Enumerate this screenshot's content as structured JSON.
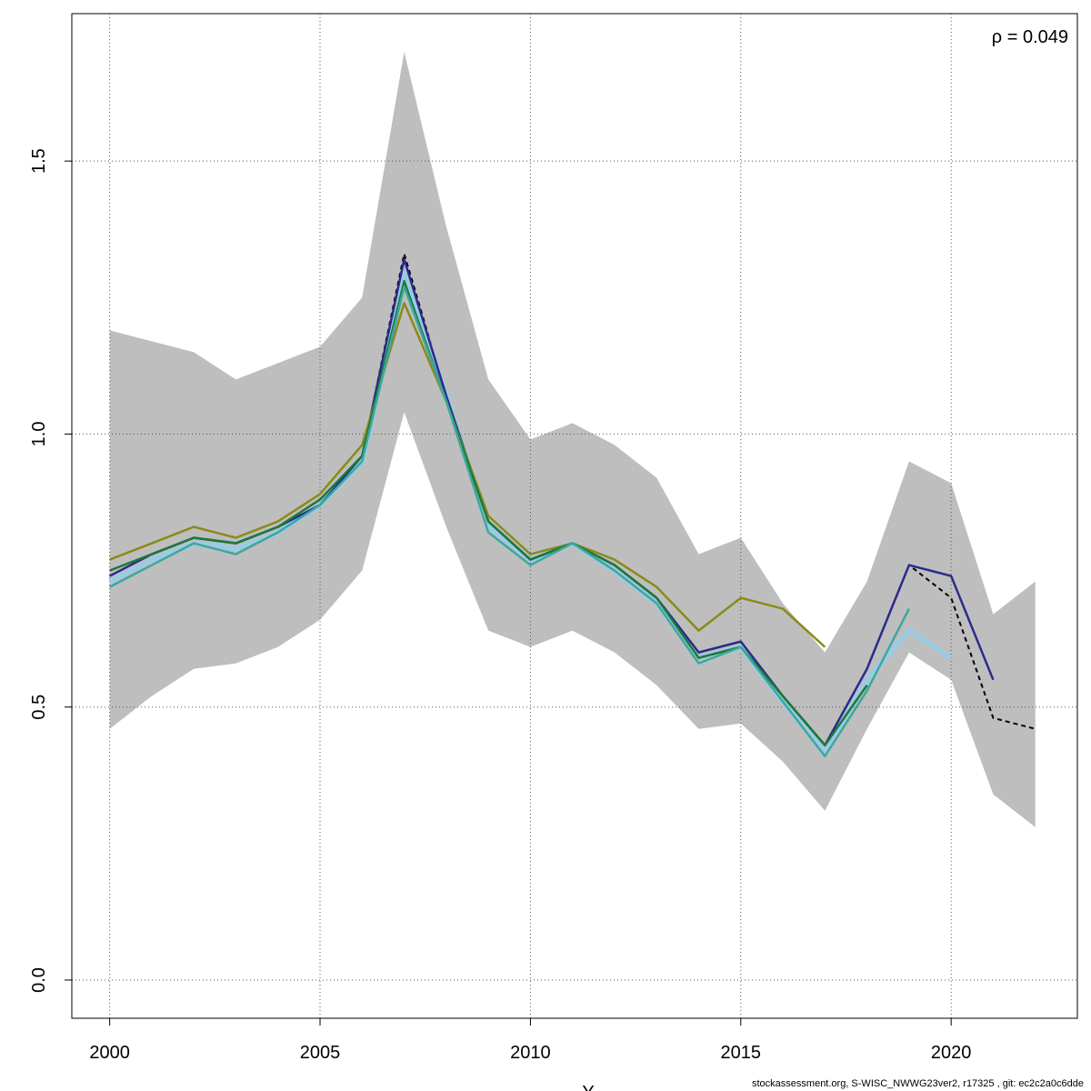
{
  "annotation": {
    "rho": "ρ = 0.049"
  },
  "footer": {
    "text": "stockassessment.org, S-WISC_NWWG23ver2, r17325 , git: ec2c2a0c6dde"
  },
  "chart_data": {
    "type": "line",
    "title": "",
    "xlabel": "Y",
    "ylabel": "",
    "xlim": [
      1999.1,
      2023
    ],
    "ylim": [
      -0.07,
      1.77
    ],
    "x_ticks": [
      2000,
      2005,
      2010,
      2015,
      2020
    ],
    "y_ticks": [
      0.0,
      0.5,
      1.0,
      1.5
    ],
    "x_tick_labels": [
      "2000",
      "2005",
      "2010",
      "2015",
      "2020"
    ],
    "y_tick_labels": [
      "0.0",
      "0.5",
      "1.0",
      "1.5"
    ],
    "grid": true,
    "colors": {
      "band": "#bebebe",
      "grid": "#555555"
    },
    "confidence_band": {
      "x": [
        2000,
        2001,
        2002,
        2003,
        2004,
        2005,
        2006,
        2007,
        2008,
        2009,
        2010,
        2011,
        2012,
        2013,
        2014,
        2015,
        2016,
        2017,
        2018,
        2019,
        2020,
        2021,
        2022
      ],
      "upper": [
        1.19,
        1.17,
        1.15,
        1.1,
        1.13,
        1.16,
        1.25,
        1.7,
        1.38,
        1.1,
        0.99,
        1.02,
        0.98,
        0.92,
        0.78,
        0.81,
        0.69,
        0.6,
        0.73,
        0.95,
        0.91,
        0.67,
        0.73
      ],
      "lower": [
        0.46,
        0.52,
        0.57,
        0.58,
        0.61,
        0.66,
        0.75,
        1.04,
        0.83,
        0.64,
        0.61,
        0.64,
        0.6,
        0.54,
        0.46,
        0.47,
        0.4,
        0.31,
        0.46,
        0.6,
        0.55,
        0.34,
        0.28
      ]
    },
    "series": [
      {
        "color": "#000000",
        "dashed": true,
        "width": 2,
        "x": [
          2000,
          2001,
          2002,
          2003,
          2004,
          2005,
          2006,
          2007,
          2008,
          2009,
          2010,
          2011,
          2012,
          2013,
          2014,
          2015,
          2016,
          2017,
          2018,
          2019,
          2020,
          2021,
          2022
        ],
        "values": [
          0.74,
          0.78,
          0.81,
          0.8,
          0.83,
          0.87,
          0.96,
          1.33,
          1.07,
          0.84,
          0.77,
          0.8,
          0.76,
          0.7,
          0.6,
          0.62,
          0.52,
          0.43,
          0.57,
          0.76,
          0.7,
          0.48,
          0.46
        ]
      },
      {
        "color": "#9ecae1",
        "dashed": false,
        "width": 6,
        "x": [
          2000,
          2001,
          2002,
          2003,
          2004,
          2005,
          2006,
          2007,
          2008,
          2009,
          2010,
          2011,
          2012,
          2013,
          2014,
          2015,
          2016,
          2017,
          2018,
          2019,
          2020
        ],
        "values": [
          0.73,
          0.77,
          0.8,
          0.79,
          0.82,
          0.87,
          0.95,
          1.3,
          1.07,
          0.83,
          0.77,
          0.8,
          0.75,
          0.69,
          0.59,
          0.61,
          0.51,
          0.42,
          0.55,
          0.64,
          0.59
        ]
      },
      {
        "color": "#2b2b8a",
        "dashed": false,
        "width": 2.5,
        "x": [
          2000,
          2001,
          2002,
          2003,
          2004,
          2005,
          2006,
          2007,
          2008,
          2009,
          2010,
          2011,
          2012,
          2013,
          2014,
          2015,
          2016,
          2017,
          2018,
          2019,
          2020,
          2021
        ],
        "values": [
          0.74,
          0.78,
          0.81,
          0.8,
          0.83,
          0.87,
          0.96,
          1.32,
          1.07,
          0.84,
          0.77,
          0.8,
          0.76,
          0.7,
          0.6,
          0.62,
          0.52,
          0.43,
          0.57,
          0.76,
          0.74,
          0.55
        ]
      },
      {
        "color": "#8a8a1a",
        "dashed": false,
        "width": 2.5,
        "x": [
          2000,
          2001,
          2002,
          2003,
          2004,
          2005,
          2006,
          2007,
          2008,
          2009,
          2010,
          2011,
          2012,
          2013,
          2014,
          2015,
          2016,
          2017
        ],
        "values": [
          0.77,
          0.8,
          0.83,
          0.81,
          0.84,
          0.89,
          0.98,
          1.24,
          1.06,
          0.85,
          0.78,
          0.8,
          0.77,
          0.72,
          0.64,
          0.7,
          0.68,
          0.61
        ]
      },
      {
        "color": "#1a7a3a",
        "dashed": false,
        "width": 2.5,
        "x": [
          2000,
          2001,
          2002,
          2003,
          2004,
          2005,
          2006,
          2007,
          2008,
          2009,
          2010,
          2011,
          2012,
          2013,
          2014,
          2015,
          2016,
          2017,
          2018
        ],
        "values": [
          0.75,
          0.78,
          0.81,
          0.8,
          0.83,
          0.88,
          0.96,
          1.28,
          1.06,
          0.84,
          0.77,
          0.8,
          0.76,
          0.7,
          0.59,
          0.61,
          0.52,
          0.43,
          0.54
        ]
      },
      {
        "color": "#3aa8a0",
        "dashed": false,
        "width": 2.5,
        "x": [
          2000,
          2001,
          2002,
          2003,
          2004,
          2005,
          2006,
          2007,
          2008,
          2009,
          2010,
          2011,
          2012,
          2013,
          2014,
          2015,
          2016,
          2017,
          2018,
          2019
        ],
        "values": [
          0.72,
          0.76,
          0.8,
          0.78,
          0.82,
          0.87,
          0.95,
          1.27,
          1.06,
          0.82,
          0.76,
          0.8,
          0.75,
          0.69,
          0.58,
          0.61,
          0.51,
          0.41,
          0.53,
          0.68
        ]
      }
    ]
  }
}
